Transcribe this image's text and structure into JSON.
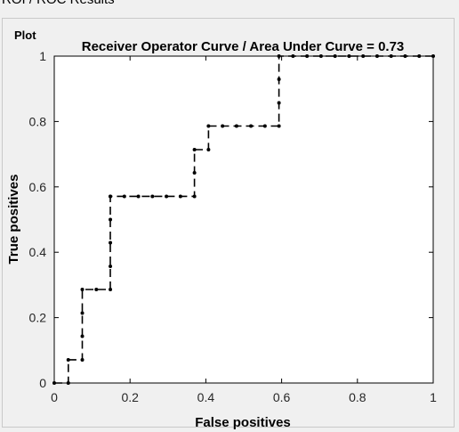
{
  "window": {
    "title": "ROI / ROC Results"
  },
  "panel": {
    "label": "Plot"
  },
  "chart_data": {
    "type": "line",
    "title": "Receiver Operator Curve / Area Under Curve = 0.73",
    "xlabel": "False positives",
    "ylabel": "True positives",
    "xlim": [
      0,
      1
    ],
    "ylim": [
      0,
      1
    ],
    "xticks": [
      0,
      0.2,
      0.4,
      0.6,
      0.8,
      1
    ],
    "yticks": [
      0,
      0.2,
      0.4,
      0.6,
      0.8,
      1
    ],
    "xtick_labels": [
      "0",
      "0.2",
      "0.4",
      "0.6",
      "0.8",
      "1"
    ],
    "ytick_labels": [
      "0",
      "0.2",
      "0.4",
      "0.6",
      "0.8",
      "1"
    ],
    "grid": false,
    "line_style": "dashed",
    "marker": "dot",
    "color": "#000000",
    "series": [
      {
        "x": [
          0,
          0.037,
          0.037,
          0.074,
          0.074,
          0.074,
          0.074,
          0.111,
          0.148,
          0.148,
          0.148,
          0.148,
          0.148,
          0.148,
          0.185,
          0.222,
          0.259,
          0.296,
          0.333,
          0.37,
          0.37,
          0.37,
          0.407,
          0.407,
          0.444,
          0.481,
          0.519,
          0.556,
          0.593,
          0.593,
          0.593,
          0.593,
          0.63,
          0.667,
          0.704,
          0.741,
          0.778,
          0.815,
          0.852,
          0.889,
          0.926,
          0.963,
          1.0
        ],
        "y": [
          0,
          0,
          0.071,
          0.071,
          0.143,
          0.214,
          0.286,
          0.286,
          0.286,
          0.357,
          0.429,
          0.5,
          0.571,
          0.571,
          0.571,
          0.571,
          0.571,
          0.571,
          0.571,
          0.571,
          0.643,
          0.714,
          0.714,
          0.786,
          0.786,
          0.786,
          0.786,
          0.786,
          0.786,
          0.857,
          0.929,
          1.0,
          1.0,
          1.0,
          1.0,
          1.0,
          1.0,
          1.0,
          1.0,
          1.0,
          1.0,
          1.0,
          1.0
        ]
      }
    ]
  }
}
